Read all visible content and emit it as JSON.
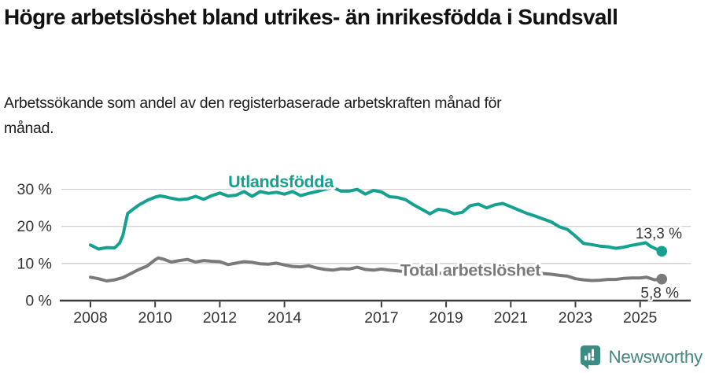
{
  "header": {
    "title": "Högre arbetslöshet bland utrikes- än inrikesfödda i Sundsvall",
    "subtitle": "Arbetssökande som andel av den registerbaserade arbetskraften månad för månad."
  },
  "chart_data": {
    "type": "line",
    "title": "Högre arbetslöshet bland utrikes- än inrikesfödda i Sundsvall",
    "subtitle": "Arbetssökande som andel av den registerbaserade arbetskraften månad för månad.",
    "grid": true,
    "x_axis": {
      "range": [
        2008,
        2025.75
      ],
      "tick_labels": [
        "2008",
        "2010",
        "2012",
        "2014",
        "2017",
        "2019",
        "2021",
        "2023",
        "2025"
      ],
      "tick_values": [
        2008,
        2010,
        2012,
        2014,
        2017,
        2019,
        2021,
        2023,
        2025
      ]
    },
    "y_axis": {
      "range": [
        0,
        32
      ],
      "tick_values": [
        0,
        10,
        20,
        30
      ],
      "tick_labels": [
        "0 %",
        "10 %",
        "20 %",
        "30 %"
      ],
      "unit": "%"
    },
    "colors": {
      "grid": "#cccccc",
      "axis": "#3d3d3d",
      "tick_text": "#333333",
      "value_label_text": "#333333"
    },
    "series": [
      {
        "name": "Utlandsfödda",
        "color": "#14a18f",
        "end_label": "13,3 %",
        "end_value": 13.3,
        "points": [
          [
            2008.0,
            15.0
          ],
          [
            2008.25,
            13.9
          ],
          [
            2008.5,
            14.3
          ],
          [
            2008.75,
            14.2
          ],
          [
            2008.9,
            15.5
          ],
          [
            2009.0,
            17.5
          ],
          [
            2009.15,
            23.5
          ],
          [
            2009.3,
            24.5
          ],
          [
            2009.5,
            25.8
          ],
          [
            2009.75,
            27.0
          ],
          [
            2010.0,
            27.9
          ],
          [
            2010.15,
            28.2
          ],
          [
            2010.3,
            28.0
          ],
          [
            2010.5,
            27.6
          ],
          [
            2010.75,
            27.2
          ],
          [
            2011.0,
            27.4
          ],
          [
            2011.25,
            28.1
          ],
          [
            2011.5,
            27.3
          ],
          [
            2011.75,
            28.3
          ],
          [
            2012.0,
            29.0
          ],
          [
            2012.25,
            28.2
          ],
          [
            2012.5,
            28.4
          ],
          [
            2012.75,
            29.4
          ],
          [
            2013.0,
            28.1
          ],
          [
            2013.25,
            29.4
          ],
          [
            2013.5,
            28.9
          ],
          [
            2013.75,
            29.2
          ],
          [
            2014.0,
            28.7
          ],
          [
            2014.25,
            29.4
          ],
          [
            2014.5,
            28.3
          ],
          [
            2014.75,
            28.9
          ],
          [
            2015.0,
            29.4
          ],
          [
            2015.25,
            30.0
          ],
          [
            2015.5,
            30.5
          ],
          [
            2015.75,
            29.5
          ],
          [
            2016.0,
            29.5
          ],
          [
            2016.25,
            30.0
          ],
          [
            2016.5,
            28.7
          ],
          [
            2016.75,
            29.7
          ],
          [
            2017.0,
            29.3
          ],
          [
            2017.25,
            28.0
          ],
          [
            2017.5,
            27.8
          ],
          [
            2017.75,
            27.2
          ],
          [
            2018.0,
            25.8
          ],
          [
            2018.25,
            24.6
          ],
          [
            2018.5,
            23.4
          ],
          [
            2018.75,
            24.6
          ],
          [
            2019.0,
            24.3
          ],
          [
            2019.25,
            23.4
          ],
          [
            2019.5,
            23.8
          ],
          [
            2019.75,
            25.6
          ],
          [
            2020.0,
            26.0
          ],
          [
            2020.25,
            25.0
          ],
          [
            2020.5,
            25.8
          ],
          [
            2020.75,
            26.2
          ],
          [
            2021.0,
            25.3
          ],
          [
            2021.25,
            24.4
          ],
          [
            2021.5,
            23.5
          ],
          [
            2021.75,
            22.8
          ],
          [
            2022.0,
            22.0
          ],
          [
            2022.25,
            21.2
          ],
          [
            2022.5,
            19.9
          ],
          [
            2022.75,
            19.2
          ],
          [
            2023.0,
            17.4
          ],
          [
            2023.25,
            15.4
          ],
          [
            2023.5,
            15.1
          ],
          [
            2023.75,
            14.7
          ],
          [
            2024.0,
            14.5
          ],
          [
            2024.25,
            14.1
          ],
          [
            2024.5,
            14.4
          ],
          [
            2024.75,
            14.9
          ],
          [
            2025.0,
            15.3
          ],
          [
            2025.17,
            15.6
          ],
          [
            2025.33,
            14.6
          ],
          [
            2025.5,
            13.9
          ],
          [
            2025.67,
            13.3
          ]
        ]
      },
      {
        "name": "Total arbetslöshet",
        "color": "#7a7a7a",
        "end_label": "5,8 %",
        "end_value": 5.8,
        "points": [
          [
            2008.0,
            6.3
          ],
          [
            2008.25,
            5.9
          ],
          [
            2008.5,
            5.3
          ],
          [
            2008.75,
            5.6
          ],
          [
            2009.0,
            6.2
          ],
          [
            2009.25,
            7.3
          ],
          [
            2009.5,
            8.4
          ],
          [
            2009.75,
            9.3
          ],
          [
            2010.0,
            11.0
          ],
          [
            2010.1,
            11.5
          ],
          [
            2010.25,
            11.2
          ],
          [
            2010.5,
            10.4
          ],
          [
            2010.75,
            10.8
          ],
          [
            2011.0,
            11.1
          ],
          [
            2011.25,
            10.4
          ],
          [
            2011.5,
            10.8
          ],
          [
            2011.75,
            10.6
          ],
          [
            2012.0,
            10.5
          ],
          [
            2012.25,
            9.7
          ],
          [
            2012.5,
            10.1
          ],
          [
            2012.75,
            10.5
          ],
          [
            2013.0,
            10.3
          ],
          [
            2013.25,
            9.9
          ],
          [
            2013.5,
            9.8
          ],
          [
            2013.75,
            10.1
          ],
          [
            2014.0,
            9.6
          ],
          [
            2014.25,
            9.2
          ],
          [
            2014.5,
            9.1
          ],
          [
            2014.75,
            9.4
          ],
          [
            2015.0,
            8.8
          ],
          [
            2015.25,
            8.4
          ],
          [
            2015.5,
            8.2
          ],
          [
            2015.75,
            8.6
          ],
          [
            2016.0,
            8.5
          ],
          [
            2016.25,
            9.0
          ],
          [
            2016.5,
            8.4
          ],
          [
            2016.75,
            8.2
          ],
          [
            2017.0,
            8.5
          ],
          [
            2017.25,
            8.2
          ],
          [
            2017.5,
            8.0
          ],
          [
            2017.75,
            7.8
          ],
          [
            2018.0,
            7.6
          ],
          [
            2018.25,
            7.4
          ],
          [
            2018.5,
            7.3
          ],
          [
            2018.75,
            7.4
          ],
          [
            2019.0,
            7.3
          ],
          [
            2019.25,
            7.1
          ],
          [
            2019.5,
            7.2
          ],
          [
            2019.75,
            7.4
          ],
          [
            2020.0,
            7.8
          ],
          [
            2020.25,
            8.8
          ],
          [
            2020.5,
            9.1
          ],
          [
            2020.75,
            8.7
          ],
          [
            2021.0,
            8.4
          ],
          [
            2021.25,
            8.1
          ],
          [
            2021.5,
            7.8
          ],
          [
            2021.75,
            7.5
          ],
          [
            2022.0,
            7.3
          ],
          [
            2022.25,
            7.1
          ],
          [
            2022.5,
            6.8
          ],
          [
            2022.75,
            6.6
          ],
          [
            2023.0,
            5.9
          ],
          [
            2023.25,
            5.6
          ],
          [
            2023.5,
            5.4
          ],
          [
            2023.75,
            5.5
          ],
          [
            2024.0,
            5.7
          ],
          [
            2024.25,
            5.7
          ],
          [
            2024.5,
            6.0
          ],
          [
            2024.75,
            6.1
          ],
          [
            2025.0,
            6.1
          ],
          [
            2025.2,
            6.3
          ],
          [
            2025.45,
            5.6
          ],
          [
            2025.67,
            5.8
          ]
        ]
      }
    ]
  },
  "footer": {
    "brand": "Newsworthy",
    "logo_icon": "bar-chart-speech-bubble-icon",
    "brand_color": "#3b8c82"
  }
}
